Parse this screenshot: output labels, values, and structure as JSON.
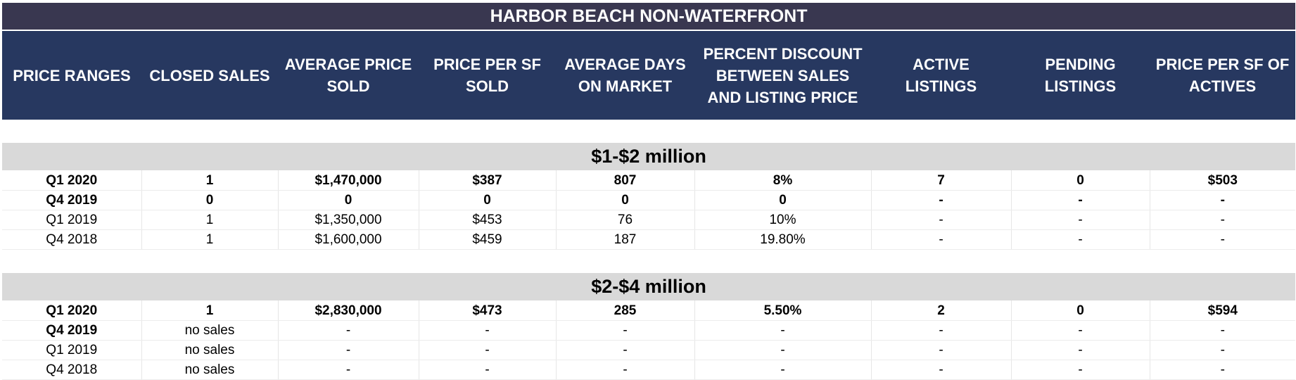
{
  "title": "HARBOR BEACH NON-WATERFRONT",
  "columns": [
    "PRICE RANGES",
    "CLOSED SALES",
    "AVERAGE PRICE SOLD",
    "PRICE PER SF SOLD",
    "AVERAGE DAYS ON MARKET",
    "PERCENT DISCOUNT BETWEEN SALES AND LISTING PRICE",
    "ACTIVE LISTINGS",
    "PENDING LISTINGS",
    "PRICE PER SF OF ACTIVES"
  ],
  "sections": [
    {
      "label": "$1-$2 million",
      "rows": [
        {
          "cells": [
            "Q1 2020",
            "1",
            "$1,470,000",
            "$387",
            "807",
            "8%",
            "7",
            "0",
            "$503"
          ],
          "bold": true
        },
        {
          "cells": [
            "Q4 2019",
            "0",
            "0",
            "0",
            "0",
            "0",
            "-",
            "-",
            "-"
          ],
          "bold": true
        },
        {
          "cells": [
            "Q1 2019",
            "1",
            "$1,350,000",
            "$453",
            "76",
            "10%",
            "-",
            "-",
            "-"
          ],
          "bold": false
        },
        {
          "cells": [
            "Q4 2018",
            "1",
            "$1,600,000",
            "$459",
            "187",
            "19.80%",
            "-",
            "-",
            "-"
          ],
          "bold": false
        }
      ]
    },
    {
      "label": "$2-$4 million",
      "rows": [
        {
          "cells": [
            "Q1 2020",
            "1",
            "$2,830,000",
            "$473",
            "285",
            "5.50%",
            "2",
            "0",
            "$594"
          ],
          "bold": true
        },
        {
          "cells": [
            "Q4 2019",
            "no sales",
            "-",
            "-",
            "-",
            "-",
            "-",
            "-",
            "-"
          ],
          "bold": false,
          "bold_label": true
        },
        {
          "cells": [
            "Q1 2019",
            "no sales",
            "-",
            "-",
            "-",
            "-",
            "-",
            "-",
            "-"
          ],
          "bold": false
        },
        {
          "cells": [
            "Q4 2018",
            "no sales",
            "-",
            "-",
            "-",
            "-",
            "-",
            "-",
            "-"
          ],
          "bold": false
        }
      ]
    }
  ],
  "colors": {
    "title_bg": "#393750",
    "header_bg": "#273860",
    "header_text": "#ffffff",
    "section_bg": "#d9d9d9"
  }
}
